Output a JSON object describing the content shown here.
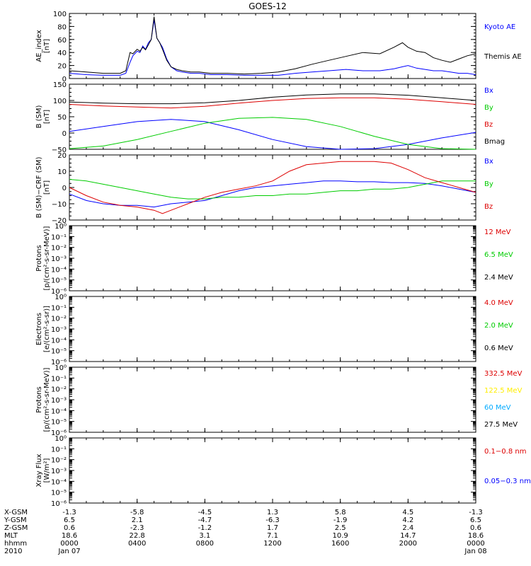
{
  "title": "GOES-12",
  "colors": {
    "black": "#000000",
    "blue": "#0000ff",
    "green": "#00cc00",
    "red": "#dd0000",
    "yellow": "#ffee00",
    "cyan": "#00aaff"
  },
  "x_axis": {
    "range": [
      0,
      1440
    ],
    "ticks": [
      0,
      240,
      480,
      720,
      960,
      1200,
      1440
    ],
    "rows": [
      {
        "label": "X-GSM",
        "values": [
          "-1.3",
          "-5.8",
          "-4.5",
          "1.3",
          "5.8",
          "4.5",
          "-1.3"
        ]
      },
      {
        "label": "Y-GSM",
        "values": [
          "6.5",
          "2.1",
          "-4.7",
          "-6.3",
          "-1.9",
          "4.2",
          "6.5"
        ]
      },
      {
        "label": "Z-GSM",
        "values": [
          "0.6",
          "-2.3",
          "-1.2",
          "1.7",
          "2.5",
          "2.4",
          "0.6"
        ]
      },
      {
        "label": "MLT",
        "values": [
          "18.6",
          "22.8",
          "3.1",
          "7.1",
          "10.9",
          "14.7",
          "18.6"
        ]
      },
      {
        "label": "hhmm",
        "values": [
          "0000",
          "0400",
          "0800",
          "1200",
          "1600",
          "2000",
          "0000"
        ]
      },
      {
        "label": "2010",
        "values": [
          "Jan 07",
          "",
          "",
          "",
          "",
          "",
          "Jan 08"
        ]
      }
    ]
  },
  "chart_data": [
    {
      "type": "line",
      "ylabel": [
        "AE_index",
        "[nT]"
      ],
      "ylim": [
        0,
        100
      ],
      "yticks": [
        "0",
        "20",
        "40",
        "60",
        "80",
        "100"
      ],
      "legend": [
        {
          "text": "Kyoto AE",
          "color": "#0000ff"
        },
        {
          "text": "Themis AE",
          "color": "#000000"
        }
      ],
      "series": [
        {
          "name": "Kyoto AE",
          "color": "#0000ff",
          "x": [
            0,
            60,
            120,
            180,
            200,
            215,
            225,
            240,
            250,
            260,
            270,
            280,
            290,
            300,
            310,
            320,
            330,
            345,
            360,
            380,
            400,
            430,
            460,
            500,
            560,
            620,
            680,
            740,
            800,
            860,
            920,
            980,
            1040,
            1100,
            1150,
            1180,
            1200,
            1230,
            1260,
            1290,
            1320,
            1350,
            1380,
            1410,
            1440
          ],
          "y": [
            8,
            6,
            5,
            5,
            8,
            25,
            35,
            42,
            40,
            50,
            45,
            55,
            60,
            90,
            62,
            55,
            48,
            30,
            18,
            12,
            10,
            8,
            8,
            6,
            6,
            5,
            5,
            5,
            8,
            10,
            12,
            14,
            12,
            12,
            15,
            18,
            20,
            16,
            14,
            12,
            12,
            10,
            8,
            8,
            6
          ]
        },
        {
          "name": "Themis AE",
          "color": "#000000",
          "x": [
            0,
            60,
            120,
            180,
            200,
            215,
            225,
            240,
            250,
            260,
            270,
            280,
            290,
            300,
            310,
            320,
            330,
            345,
            360,
            380,
            400,
            430,
            460,
            500,
            560,
            620,
            680,
            740,
            800,
            860,
            920,
            980,
            1040,
            1100,
            1150,
            1180,
            1200,
            1230,
            1260,
            1290,
            1320,
            1350,
            1380,
            1410,
            1440
          ],
          "y": [
            12,
            10,
            8,
            8,
            12,
            40,
            38,
            45,
            42,
            48,
            44,
            52,
            60,
            95,
            62,
            55,
            45,
            28,
            18,
            14,
            12,
            10,
            10,
            8,
            8,
            7,
            8,
            10,
            15,
            22,
            28,
            34,
            40,
            38,
            48,
            55,
            48,
            42,
            40,
            32,
            28,
            25,
            30,
            35,
            38
          ]
        }
      ]
    },
    {
      "type": "line",
      "ylabel": [
        "B (SM)",
        "[nT]"
      ],
      "ylim": [
        -50,
        150
      ],
      "yticks": [
        "−50",
        "0",
        "50",
        "100",
        "150"
      ],
      "legend": [
        {
          "text": "Bx",
          "color": "#0000ff"
        },
        {
          "text": "By",
          "color": "#00cc00"
        },
        {
          "text": "Bz",
          "color": "#dd0000"
        },
        {
          "text": "Bmag",
          "color": "#000000"
        }
      ],
      "series": [
        {
          "name": "Bx",
          "color": "#0000ff",
          "x": [
            0,
            120,
            240,
            360,
            480,
            600,
            720,
            840,
            960,
            1080,
            1200,
            1320,
            1440
          ],
          "y": [
            5,
            20,
            35,
            42,
            35,
            10,
            -20,
            -42,
            -50,
            -48,
            -35,
            -15,
            2
          ]
        },
        {
          "name": "By",
          "color": "#00cc00",
          "x": [
            0,
            120,
            240,
            360,
            480,
            600,
            720,
            840,
            960,
            1080,
            1200,
            1320,
            1440
          ],
          "y": [
            -48,
            -40,
            -20,
            5,
            30,
            45,
            48,
            42,
            20,
            -10,
            -35,
            -48,
            -50
          ]
        },
        {
          "name": "Bz",
          "color": "#dd0000",
          "x": [
            0,
            120,
            240,
            360,
            480,
            600,
            720,
            840,
            960,
            1080,
            1200,
            1320,
            1440
          ],
          "y": [
            88,
            83,
            80,
            77,
            82,
            92,
            100,
            106,
            108,
            108,
            104,
            96,
            88
          ]
        },
        {
          "name": "Bmag",
          "color": "#000000",
          "x": [
            0,
            120,
            240,
            360,
            480,
            600,
            720,
            840,
            960,
            1080,
            1200,
            1320,
            1440
          ],
          "y": [
            95,
            92,
            90,
            90,
            93,
            100,
            110,
            117,
            120,
            120,
            116,
            108,
            100
          ]
        }
      ]
    },
    {
      "type": "line",
      "ylabel": [
        "B (SM)−CRF (SM)",
        "[nT]"
      ],
      "ylim": [
        -20,
        20
      ],
      "yticks": [
        "−20",
        "−10",
        "0",
        "10",
        "20"
      ],
      "legend": [
        {
          "text": "Bx",
          "color": "#0000ff"
        },
        {
          "text": "By",
          "color": "#00cc00"
        },
        {
          "text": "Bz",
          "color": "#dd0000"
        }
      ],
      "series": [
        {
          "name": "Bx",
          "color": "#0000ff",
          "x": [
            0,
            60,
            120,
            180,
            240,
            300,
            360,
            420,
            480,
            540,
            600,
            660,
            720,
            780,
            840,
            900,
            960,
            1020,
            1080,
            1140,
            1200,
            1260,
            1320,
            1380,
            1440
          ],
          "y": [
            -4,
            -8,
            -10,
            -11,
            -11,
            -12,
            -10,
            -9,
            -8,
            -5,
            -2,
            0,
            1,
            2,
            3,
            4,
            4,
            3.5,
            3.5,
            3,
            3,
            2.5,
            1,
            -1,
            -3
          ]
        },
        {
          "name": "By",
          "color": "#00cc00",
          "x": [
            0,
            60,
            120,
            180,
            240,
            300,
            360,
            420,
            480,
            540,
            600,
            660,
            720,
            780,
            840,
            900,
            960,
            1020,
            1080,
            1140,
            1200,
            1260,
            1320,
            1380,
            1440
          ],
          "y": [
            5,
            4,
            2,
            0,
            -2,
            -4,
            -6,
            -7,
            -7,
            -6,
            -6,
            -5,
            -5,
            -4,
            -4,
            -3,
            -2,
            -2,
            -1,
            -1,
            0,
            2,
            4,
            4,
            4
          ]
        },
        {
          "name": "Bz",
          "color": "#dd0000",
          "x": [
            0,
            60,
            120,
            180,
            240,
            300,
            330,
            360,
            420,
            480,
            540,
            600,
            660,
            720,
            780,
            840,
            900,
            960,
            1020,
            1080,
            1140,
            1200,
            1260,
            1320,
            1380,
            1440
          ],
          "y": [
            0,
            -5,
            -9,
            -11,
            -12,
            -14,
            -16,
            -14,
            -10,
            -6,
            -3,
            -1,
            1,
            4,
            10,
            14,
            15,
            16,
            16,
            16,
            15,
            11,
            6,
            3,
            0,
            -3
          ]
        }
      ]
    },
    {
      "type": "line",
      "scale": "log",
      "ylabel": [
        "Protons",
        "[p/(cm²-s-sr-MeV)]"
      ],
      "yticks": [
        "10⁻⁶",
        "10⁻⁵",
        "10⁻⁴",
        "10⁻³",
        "10⁻²",
        "10⁻¹",
        "10⁰"
      ],
      "legend": [
        {
          "text": "12 MeV",
          "color": "#dd0000"
        },
        {
          "text": "6.5 MeV",
          "color": "#00cc00"
        },
        {
          "text": "2.4 MeV",
          "color": "#000000"
        }
      ],
      "series": []
    },
    {
      "type": "line",
      "scale": "log",
      "ylabel": [
        "Electrons",
        "[e/(cm²-s-sr)]"
      ],
      "yticks": [
        "10⁻⁶",
        "10⁻⁵",
        "10⁻⁴",
        "10⁻³",
        "10⁻²",
        "10⁻¹",
        "10⁰"
      ],
      "legend": [
        {
          "text": "4.0 MeV",
          "color": "#dd0000"
        },
        {
          "text": "2.0 MeV",
          "color": "#00cc00"
        },
        {
          "text": "0.6 MeV",
          "color": "#000000"
        }
      ],
      "series": []
    },
    {
      "type": "line",
      "scale": "log",
      "ylabel": [
        "Protons",
        "[p/(cm²-s-sr-MeV)]"
      ],
      "yticks": [
        "10⁻⁶",
        "10⁻⁵",
        "10⁻⁴",
        "10⁻³",
        "10⁻²",
        "10⁻¹",
        "10⁰"
      ],
      "legend": [
        {
          "text": "332.5 MeV",
          "color": "#dd0000"
        },
        {
          "text": "122.5 MeV",
          "color": "#ffee00"
        },
        {
          "text": "60 MeV",
          "color": "#00aaff"
        },
        {
          "text": "27.5 MeV",
          "color": "#000000"
        }
      ],
      "series": []
    },
    {
      "type": "line",
      "scale": "log",
      "ylabel": [
        "Xray Flux",
        "[W/m²]"
      ],
      "yticks": [
        "10⁻⁶",
        "10⁻⁵",
        "10⁻⁴",
        "10⁻³",
        "10⁻²",
        "10⁻¹",
        "10⁰"
      ],
      "legend": [
        {
          "text": "0.1−0.8 nm",
          "color": "#dd0000"
        },
        {
          "text": "0.05−0.3 nm",
          "color": "#0000ff"
        }
      ],
      "series": []
    }
  ]
}
